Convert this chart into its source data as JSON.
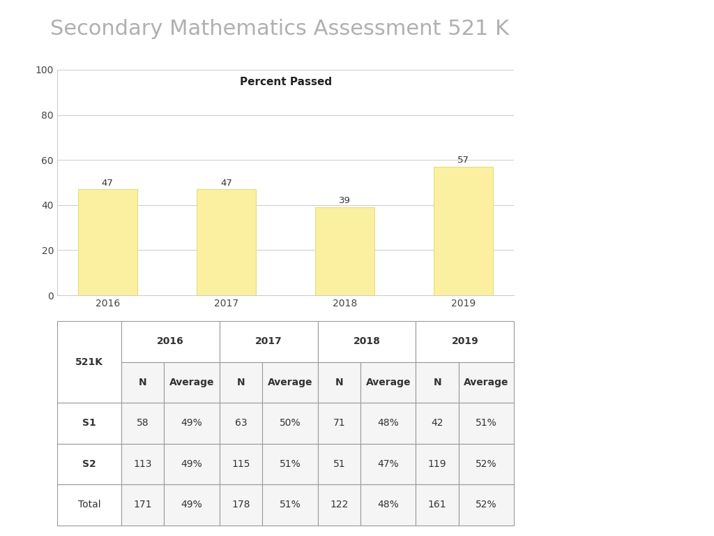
{
  "title": "Secondary Mathematics Assessment 521 K",
  "title_color": "#b0b0b0",
  "title_fontsize": 22,
  "chart_title": "Percent Passed",
  "chart_title_fontsize": 11,
  "years": [
    "2016",
    "2017",
    "2018",
    "2019"
  ],
  "values": [
    47,
    47,
    39,
    57
  ],
  "bar_color": "#FAF0A0",
  "bar_edgecolor": "#E8DC80",
  "ylim": [
    0,
    100
  ],
  "yticks": [
    0,
    20,
    40,
    60,
    80,
    100
  ],
  "background_color": "#ffffff",
  "table_rows": [
    [
      "S1",
      "58",
      "49%",
      "63",
      "50%",
      "71",
      "48%",
      "42",
      "51%"
    ],
    [
      "S2",
      "113",
      "49%",
      "115",
      "51%",
      "51",
      "47%",
      "119",
      "52%"
    ],
    [
      "Total",
      "171",
      "49%",
      "178",
      "51%",
      "122",
      "48%",
      "161",
      "52%"
    ]
  ],
  "grid_color": "#cccccc",
  "header_bg": "#e8e8e8",
  "cell_bg": "#f5f5f5",
  "table_edge_color": "#999999",
  "year_spans": [
    [
      1,
      3,
      "2016"
    ],
    [
      3,
      5,
      "2017"
    ],
    [
      5,
      7,
      "2018"
    ],
    [
      7,
      9,
      "2019"
    ]
  ],
  "sub_headers": [
    "N",
    "Average",
    "N",
    "Average",
    "N",
    "Average",
    "N",
    "Average"
  ],
  "raw_col_widths": [
    0.13,
    0.087,
    0.112,
    0.087,
    0.112,
    0.087,
    0.112,
    0.087,
    0.112
  ],
  "row_labels_bold": [
    true,
    true,
    false
  ]
}
